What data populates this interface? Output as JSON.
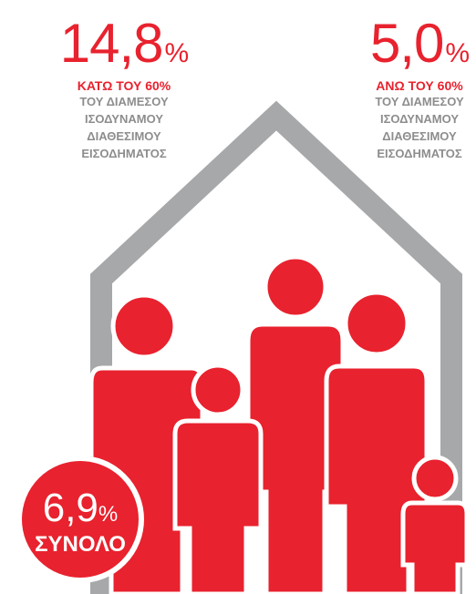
{
  "below_60": {
    "value": "14,8",
    "percent_sign": "%",
    "heading": "ΚΑΤΩ ΤΟΥ 60%",
    "lines": [
      "ΤΟΥ ΔΙΑΜΕΣΟΥ",
      "ΙΣΟΔΥΝΑΜΟΥ",
      "ΔΙΑΘΕΣΙΜΟΥ",
      "ΕΙΣΟΔΗΜΑΤΟΣ"
    ]
  },
  "above_60": {
    "value": "5,0",
    "percent_sign": "%",
    "heading": "ΑΝΩ ΤΟΥ 60%",
    "lines": [
      "ΤΟΥ ΔΙΑΜΕΣΟΥ",
      "ΙΣΟΔΥΝΑΜΟΥ",
      "ΔΙΑΘΕΣΙΜΟΥ",
      "ΕΙΣΟΔΗΜΑΤΟΣ"
    ]
  },
  "total": {
    "value": "6,9",
    "percent_sign": "%",
    "label": "ΣΥΝΟΛΟ"
  },
  "colors": {
    "accent": "#e8222e",
    "house": "#a7a8aa",
    "text_gray": "#8d8d8f"
  },
  "icons": [
    "house-outline-icon",
    "family-icon"
  ]
}
